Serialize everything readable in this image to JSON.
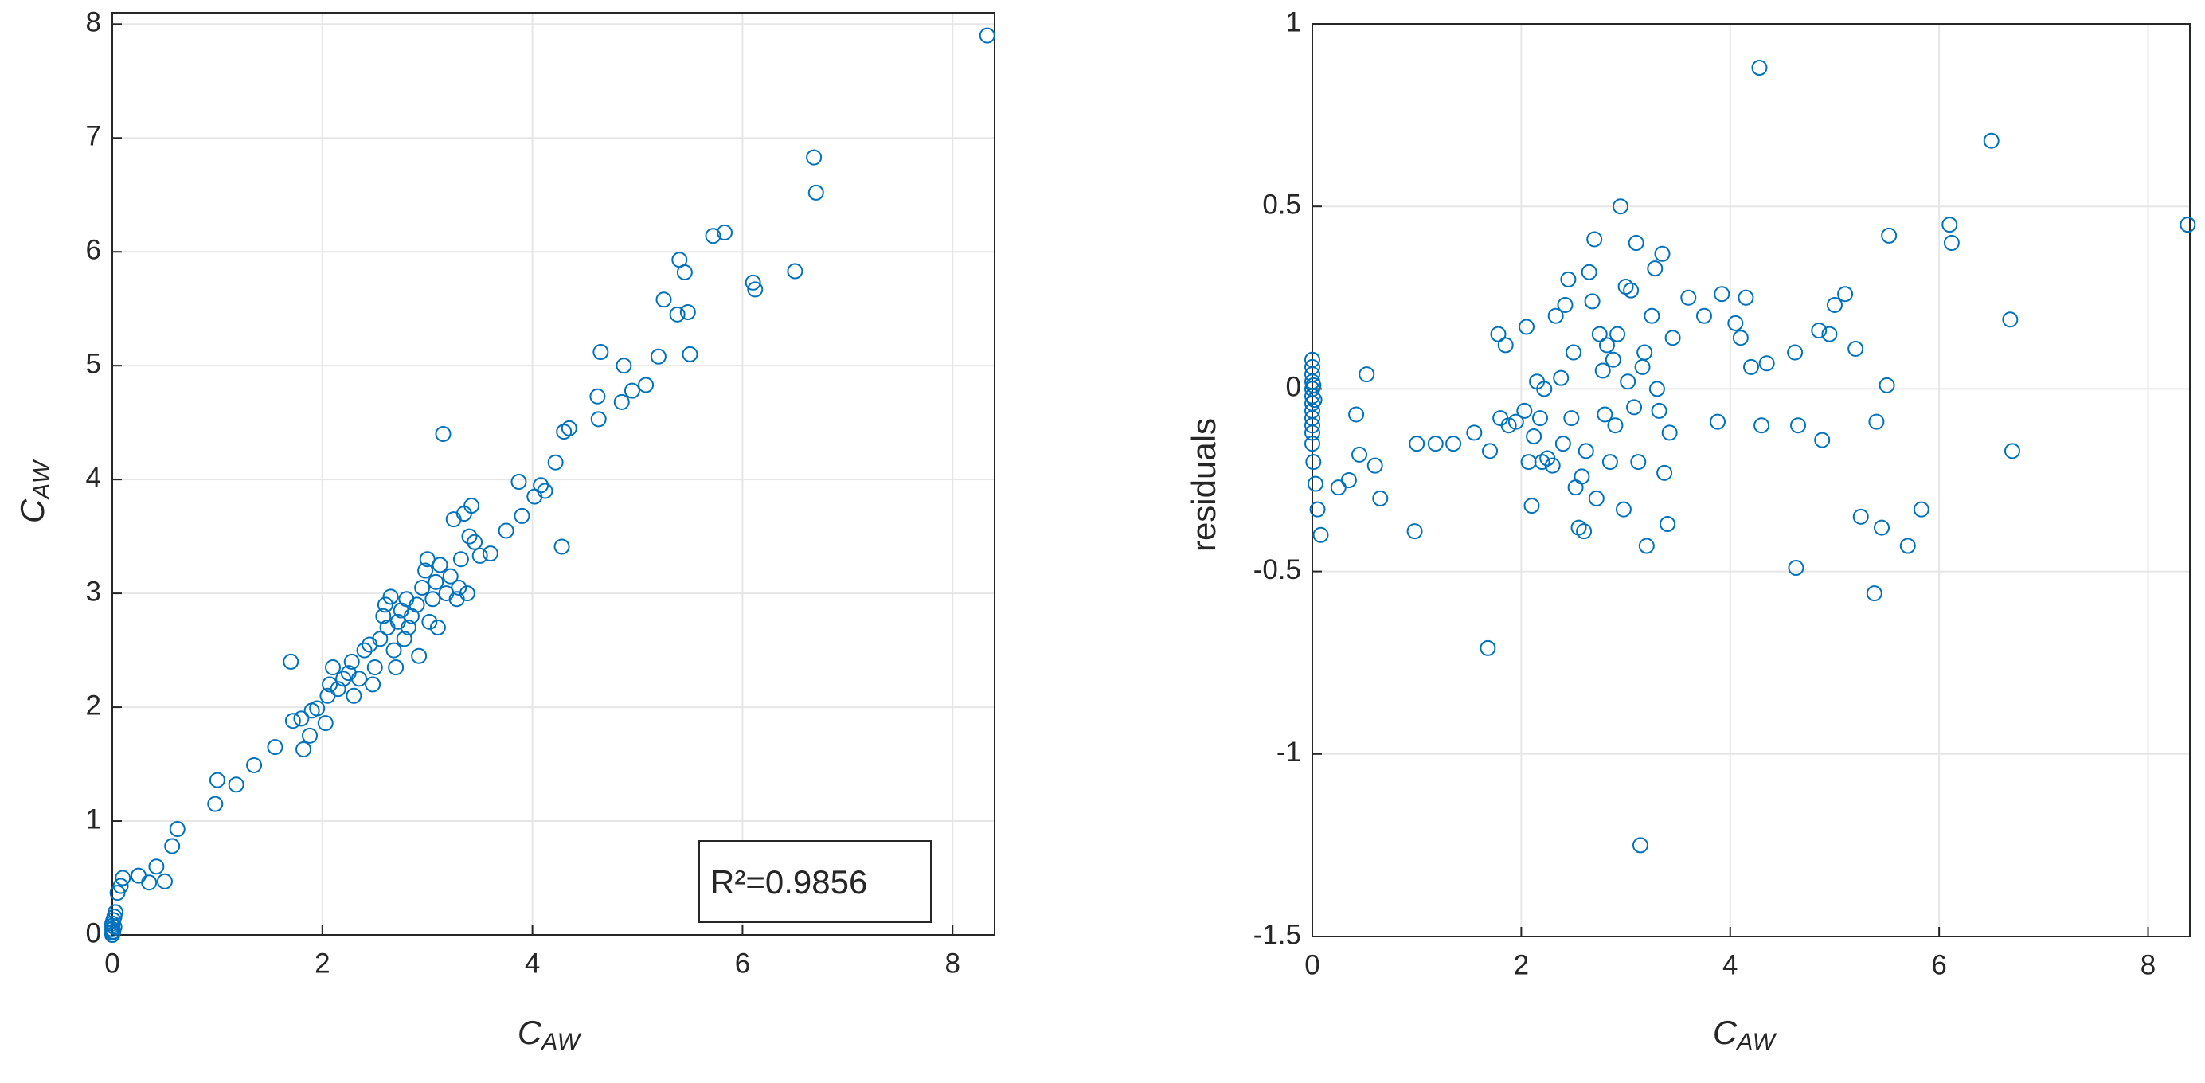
{
  "chart_data": [
    {
      "type": "scatter",
      "color": "#0072BD",
      "grid": true,
      "xlabel": {
        "base": "C",
        "sub": "AW"
      },
      "ylabel": {
        "base": "C",
        "sub": "AW"
      },
      "annotation": "R²=0.9856",
      "xlim": [
        0,
        8.4
      ],
      "ylim": [
        0,
        8.1
      ],
      "xticks": [
        0,
        2,
        4,
        6,
        8
      ],
      "yticks": [
        0,
        1,
        2,
        3,
        4,
        5,
        6,
        7,
        8
      ],
      "x": [
        0,
        0,
        0,
        0,
        0,
        0.01,
        0.02,
        0.03,
        0.01,
        0.02,
        0.05,
        0.08,
        0.1,
        0.25,
        0.35,
        0.42,
        0.5,
        0.57,
        0.62,
        0.98,
        1.0,
        1.18,
        1.35,
        1.55,
        1.7,
        1.72,
        1.8,
        1.82,
        1.88,
        1.9,
        1.95,
        2.03,
        2.05,
        2.07,
        2.1,
        2.15,
        2.2,
        2.25,
        2.28,
        2.3,
        2.35,
        2.4,
        2.45,
        2.48,
        2.5,
        2.55,
        2.58,
        2.6,
        2.62,
        2.65,
        2.68,
        2.7,
        2.72,
        2.75,
        2.78,
        2.8,
        2.82,
        2.85,
        2.9,
        2.92,
        2.95,
        2.98,
        3.0,
        3.02,
        3.05,
        3.08,
        3.1,
        3.12,
        3.15,
        3.18,
        3.22,
        3.25,
        3.28,
        3.3,
        3.32,
        3.35,
        3.38,
        3.4,
        3.42,
        3.45,
        3.5,
        3.6,
        3.75,
        3.87,
        3.9,
        4.02,
        4.08,
        4.12,
        4.22,
        4.28,
        4.3,
        4.35,
        4.62,
        4.63,
        4.65,
        4.85,
        4.87,
        4.95,
        5.08,
        5.2,
        5.25,
        5.38,
        5.4,
        5.45,
        5.48,
        5.5,
        5.72,
        5.83,
        6.1,
        6.12,
        6.5,
        6.68,
        6.7,
        8.33
      ],
      "values": [
        0,
        0.02,
        0.05,
        0.08,
        0.1,
        0.13,
        0.16,
        0.2,
        0.03,
        0.07,
        0.37,
        0.43,
        0.5,
        0.52,
        0.46,
        0.6,
        0.47,
        0.78,
        0.93,
        1.15,
        1.36,
        1.32,
        1.49,
        1.65,
        2.4,
        1.88,
        1.9,
        1.63,
        1.75,
        1.97,
        1.99,
        1.86,
        2.1,
        2.2,
        2.35,
        2.16,
        2.25,
        2.3,
        2.4,
        2.1,
        2.25,
        2.5,
        2.55,
        2.2,
        2.35,
        2.6,
        2.8,
        2.9,
        2.7,
        2.97,
        2.5,
        2.35,
        2.75,
        2.85,
        2.6,
        2.95,
        2.7,
        2.8,
        2.9,
        2.45,
        3.05,
        3.2,
        3.3,
        2.75,
        2.95,
        3.1,
        2.7,
        3.25,
        4.4,
        3.0,
        3.15,
        3.65,
        2.95,
        3.05,
        3.3,
        3.7,
        3.0,
        3.5,
        3.77,
        3.45,
        3.33,
        3.35,
        3.55,
        3.98,
        3.68,
        3.85,
        3.95,
        3.9,
        4.15,
        3.41,
        4.42,
        4.45,
        4.73,
        4.53,
        5.12,
        4.68,
        5.0,
        4.78,
        4.83,
        5.08,
        5.58,
        5.45,
        5.93,
        5.82,
        5.47,
        5.1,
        6.14,
        6.17,
        5.73,
        5.67,
        5.83,
        6.83,
        6.52,
        7.9
      ]
    },
    {
      "type": "scatter",
      "color": "#0072BD",
      "grid": true,
      "xlabel": {
        "base": "C",
        "sub": "AW"
      },
      "ylabel": "residuals",
      "xlim": [
        0,
        8.4
      ],
      "ylim": [
        -1.5,
        1
      ],
      "xticks": [
        0,
        2,
        4,
        6,
        8
      ],
      "yticks": [
        -1.5,
        -1,
        -0.5,
        0,
        0.5,
        1
      ],
      "x": [
        0,
        0,
        0,
        0,
        0,
        0,
        0,
        0,
        0,
        0,
        0,
        0,
        0.01,
        0.03,
        0.05,
        0.08,
        0.01,
        0.02,
        0.25,
        0.35,
        0.42,
        0.45,
        0.52,
        0.6,
        0.65,
        0.98,
        1.0,
        1.18,
        1.35,
        1.55,
        1.68,
        1.7,
        1.78,
        1.8,
        1.85,
        1.88,
        1.95,
        2.03,
        2.05,
        2.07,
        2.1,
        2.12,
        2.15,
        2.18,
        2.2,
        2.22,
        2.25,
        2.3,
        2.33,
        2.38,
        2.4,
        2.42,
        2.45,
        2.48,
        2.5,
        2.52,
        2.55,
        2.58,
        2.6,
        2.62,
        2.65,
        2.68,
        2.7,
        2.72,
        2.75,
        2.78,
        2.8,
        2.82,
        2.85,
        2.88,
        2.9,
        2.92,
        2.95,
        2.98,
        3.0,
        3.02,
        3.05,
        3.08,
        3.1,
        3.12,
        3.14,
        3.16,
        3.18,
        3.2,
        3.25,
        3.28,
        3.3,
        3.32,
        3.35,
        3.37,
        3.4,
        3.42,
        3.45,
        3.6,
        3.75,
        3.88,
        3.92,
        4.05,
        4.1,
        4.15,
        4.2,
        4.28,
        4.3,
        4.35,
        4.62,
        4.63,
        4.65,
        4.85,
        4.88,
        4.95,
        5.0,
        5.1,
        5.2,
        5.25,
        5.38,
        5.4,
        5.45,
        5.5,
        5.52,
        5.7,
        5.83,
        6.1,
        6.12,
        6.5,
        6.68,
        6.7,
        8.38
      ],
      "values": [
        0.08,
        0.06,
        0.04,
        0.02,
        0,
        -0.02,
        -0.04,
        -0.06,
        -0.08,
        -0.1,
        -0.12,
        -0.15,
        -0.2,
        -0.26,
        -0.33,
        -0.4,
        0.01,
        -0.03,
        -0.27,
        -0.25,
        -0.07,
        -0.18,
        0.04,
        -0.21,
        -0.3,
        -0.39,
        -0.15,
        -0.15,
        -0.15,
        -0.12,
        -0.71,
        -0.17,
        0.15,
        -0.08,
        0.12,
        -0.1,
        -0.09,
        -0.06,
        0.17,
        -0.2,
        -0.32,
        -0.13,
        0.02,
        -0.08,
        -0.2,
        0,
        -0.19,
        -0.21,
        0.2,
        0.03,
        -0.15,
        0.23,
        0.3,
        -0.08,
        0.1,
        -0.27,
        -0.38,
        -0.24,
        -0.39,
        -0.17,
        0.32,
        0.24,
        0.41,
        -0.3,
        0.15,
        0.05,
        -0.07,
        0.12,
        -0.2,
        0.08,
        -0.1,
        0.15,
        0.5,
        -0.33,
        0.28,
        0.02,
        0.27,
        -0.05,
        0.4,
        -0.2,
        -1.25,
        0.06,
        0.1,
        -0.43,
        0.2,
        0.33,
        0,
        -0.06,
        0.37,
        -0.23,
        -0.37,
        -0.12,
        0.14,
        0.25,
        0.2,
        -0.09,
        0.26,
        0.18,
        0.14,
        0.25,
        0.06,
        0.88,
        -0.1,
        0.07,
        0.1,
        -0.49,
        -0.1,
        0.16,
        -0.14,
        0.15,
        0.23,
        0.26,
        0.11,
        -0.35,
        -0.56,
        -0.09,
        -0.38,
        0.01,
        0.42,
        -0.43,
        -0.33,
        0.45,
        0.4,
        0.68,
        0.19,
        -0.17,
        0.45
      ]
    }
  ]
}
